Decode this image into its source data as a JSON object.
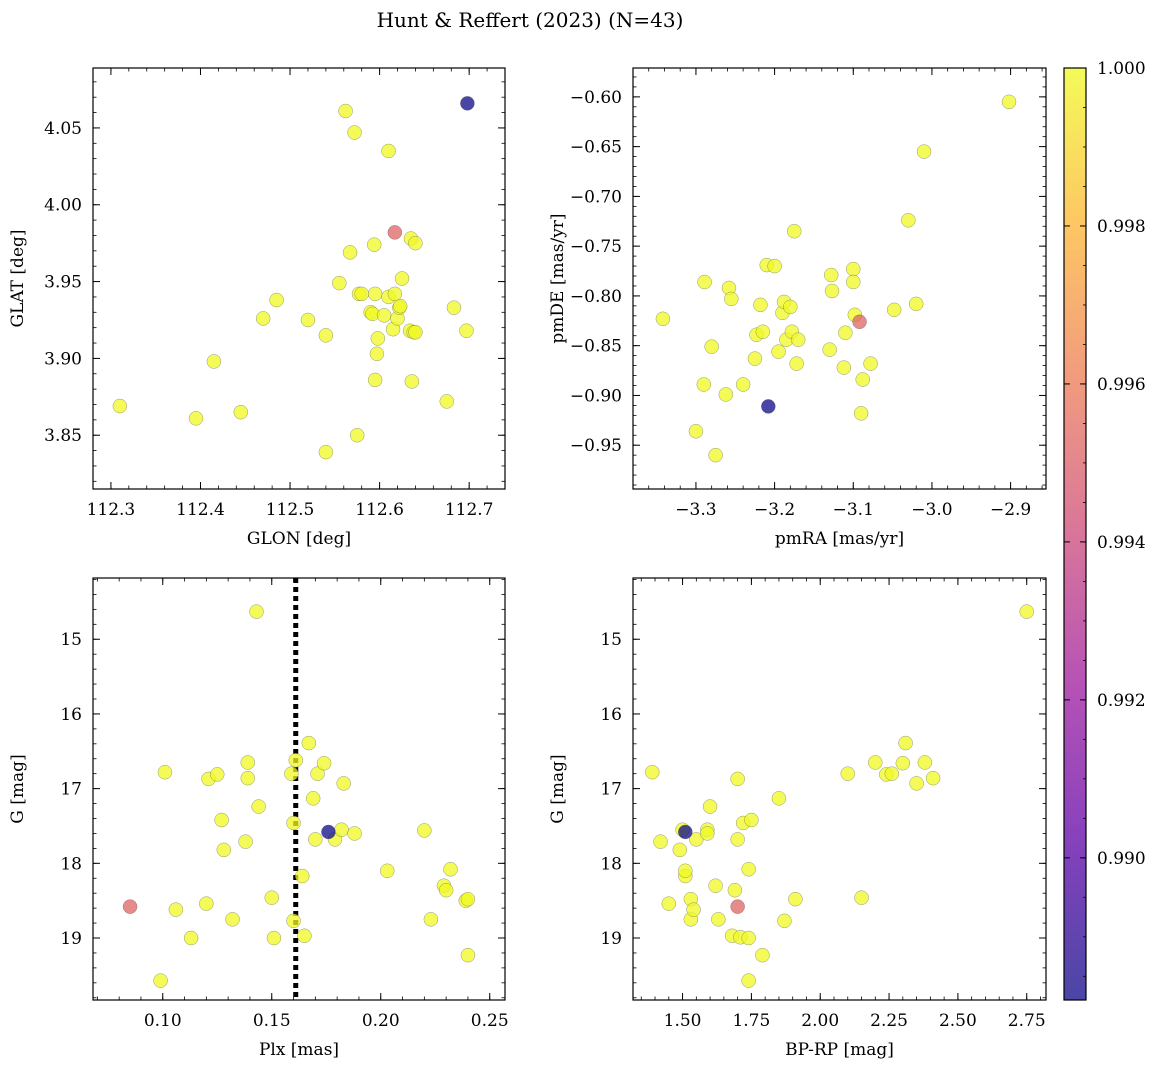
{
  "figure": {
    "title": "Hunt & Reffert (2023) (N=43)",
    "colorbar": {
      "min": 0.9882,
      "max": 1.0,
      "ticks": [
        0.99,
        0.992,
        0.994,
        0.996,
        0.998,
        1.0
      ],
      "tick_labels": [
        "0.990",
        "0.992",
        "0.994",
        "0.996",
        "0.998",
        "1.000"
      ],
      "colormap": "plasma",
      "colormap_stops": [
        "#0d0887",
        "#5c01a6",
        "#9c179e",
        "#cc4778",
        "#ed7953",
        "#fdb42f",
        "#f0f921"
      ],
      "alpha": 0.75
    }
  },
  "chart_data": [
    {
      "type": "scatter",
      "name": "glon-glat",
      "xlabel": "GLON [deg]",
      "ylabel": "GLAT [deg]",
      "xlim": [
        112.28,
        112.74
      ],
      "ylim": [
        3.815,
        4.089
      ],
      "xticks": [
        112.3,
        112.4,
        112.5,
        112.6,
        112.7
      ],
      "xtick_labels": [
        "112.3",
        "112.4",
        "112.5",
        "112.6",
        "112.7"
      ],
      "yticks": [
        3.85,
        3.9,
        3.95,
        4.0,
        4.05
      ],
      "ytick_labels": [
        "3.85",
        "3.90",
        "3.95",
        "4.00",
        "4.05"
      ],
      "invert_y": false,
      "x": [
        112.31,
        112.395,
        112.415,
        112.445,
        112.47,
        112.485,
        112.52,
        112.54,
        112.54,
        112.555,
        112.562,
        112.567,
        112.572,
        112.575,
        112.577,
        112.58,
        112.59,
        112.592,
        112.594,
        112.595,
        112.595,
        112.597,
        112.598,
        112.605,
        112.61,
        112.61,
        112.615,
        112.617,
        112.62,
        112.622,
        112.623,
        112.625,
        112.634,
        112.635,
        112.636,
        112.638,
        112.64,
        112.64,
        112.675,
        112.683,
        112.697,
        112.698,
        112.617
      ],
      "y": [
        3.869,
        3.861,
        3.898,
        3.865,
        3.926,
        3.938,
        3.925,
        3.915,
        3.839,
        3.949,
        4.061,
        3.969,
        4.047,
        3.85,
        3.942,
        3.942,
        3.93,
        3.929,
        3.974,
        3.942,
        3.886,
        3.903,
        3.913,
        3.928,
        3.94,
        4.035,
        3.919,
        3.942,
        3.926,
        3.933,
        3.934,
        3.952,
        3.918,
        3.978,
        3.885,
        3.917,
        3.975,
        3.917,
        3.872,
        3.933,
        3.918,
        4.066,
        3.982
      ],
      "c": [
        1,
        1,
        1,
        1,
        1,
        1,
        1,
        1,
        1,
        1,
        1,
        1,
        1,
        1,
        1,
        1,
        1,
        1,
        1,
        1,
        1,
        1,
        1,
        1,
        1,
        1,
        1,
        1,
        1,
        1,
        1,
        1,
        1,
        1,
        1,
        1,
        1,
        1,
        1,
        1,
        1,
        0.9882,
        0.9952
      ],
      "vline": null
    },
    {
      "type": "scatter",
      "name": "pmra-pmde",
      "xlabel": "pmRA [mas/yr]",
      "ylabel": "pmDE [mas/yr]",
      "xlim": [
        -3.38,
        -2.855
      ],
      "ylim": [
        -0.994,
        -0.571
      ],
      "xticks": [
        -3.3,
        -3.2,
        -3.1,
        -3.0,
        -2.9
      ],
      "xtick_labels": [
        "−3.3",
        "−3.2",
        "−3.1",
        "−3.0",
        "−2.9"
      ],
      "yticks": [
        -0.95,
        -0.9,
        -0.85,
        -0.8,
        -0.75,
        -0.7,
        -0.65,
        -0.6
      ],
      "ytick_labels": [
        "−0.95",
        "−0.90",
        "−0.85",
        "−0.80",
        "−0.75",
        "−0.70",
        "−0.65",
        "−0.60"
      ],
      "invert_y": false,
      "x": [
        -3.342,
        -3.3,
        -3.29,
        -3.289,
        -3.28,
        -3.275,
        -3.262,
        -3.258,
        -3.255,
        -3.24,
        -3.225,
        -3.223,
        -3.218,
        -3.215,
        -3.21,
        -3.2,
        -3.195,
        -3.19,
        -3.188,
        -3.185,
        -3.18,
        -3.178,
        -3.175,
        -3.172,
        -3.17,
        -3.13,
        -3.128,
        -3.127,
        -3.112,
        -3.11,
        -3.1,
        -3.1,
        -3.098,
        -3.09,
        -3.088,
        -3.078,
        -3.048,
        -3.03,
        -3.02,
        -3.01,
        -2.902,
        -3.208,
        -3.092
      ],
      "y": [
        -0.823,
        -0.936,
        -0.889,
        -0.786,
        -0.851,
        -0.96,
        -0.899,
        -0.792,
        -0.803,
        -0.889,
        -0.863,
        -0.839,
        -0.809,
        -0.836,
        -0.769,
        -0.77,
        -0.856,
        -0.817,
        -0.806,
        -0.844,
        -0.811,
        -0.836,
        -0.735,
        -0.868,
        -0.844,
        -0.854,
        -0.779,
        -0.795,
        -0.872,
        -0.837,
        -0.773,
        -0.786,
        -0.819,
        -0.918,
        -0.884,
        -0.868,
        -0.814,
        -0.724,
        -0.808,
        -0.655,
        -0.605,
        -0.911,
        -0.826
      ],
      "c": [
        1,
        1,
        1,
        1,
        1,
        1,
        1,
        1,
        1,
        1,
        1,
        1,
        1,
        1,
        1,
        1,
        1,
        1,
        1,
        1,
        1,
        1,
        1,
        1,
        1,
        1,
        1,
        1,
        1,
        1,
        1,
        1,
        1,
        1,
        1,
        1,
        1,
        1,
        1,
        1,
        1,
        0.9882,
        0.9952
      ],
      "vline": null
    },
    {
      "type": "scatter",
      "name": "plx-g",
      "xlabel": "Plx [mas]",
      "ylabel": "G [mag]",
      "xlim": [
        0.068,
        0.257
      ],
      "ylim": [
        19.83,
        14.18
      ],
      "xticks": [
        0.1,
        0.15,
        0.2,
        0.25
      ],
      "xtick_labels": [
        "0.10",
        "0.15",
        "0.20",
        "0.25"
      ],
      "yticks": [
        15,
        16,
        17,
        18,
        19
      ],
      "ytick_labels": [
        "15",
        "16",
        "17",
        "18",
        "19"
      ],
      "invert_y": true,
      "x": [
        0.099,
        0.101,
        0.106,
        0.113,
        0.12,
        0.121,
        0.125,
        0.127,
        0.128,
        0.132,
        0.138,
        0.139,
        0.139,
        0.143,
        0.144,
        0.15,
        0.151,
        0.159,
        0.16,
        0.16,
        0.161,
        0.164,
        0.165,
        0.167,
        0.169,
        0.17,
        0.171,
        0.174,
        0.179,
        0.182,
        0.183,
        0.188,
        0.203,
        0.22,
        0.223,
        0.229,
        0.23,
        0.232,
        0.239,
        0.24,
        0.24,
        0.176,
        0.085
      ],
      "y": [
        19.57,
        16.78,
        18.62,
        19.0,
        18.54,
        16.87,
        16.81,
        17.42,
        17.82,
        18.75,
        17.71,
        16.65,
        16.86,
        14.63,
        17.24,
        18.46,
        19.0,
        16.8,
        17.46,
        18.77,
        16.62,
        18.17,
        18.97,
        16.39,
        17.13,
        17.68,
        16.8,
        16.66,
        17.68,
        17.55,
        16.93,
        17.6,
        18.1,
        17.56,
        18.75,
        18.3,
        18.36,
        18.08,
        18.5,
        18.48,
        19.23,
        17.58,
        18.58
      ],
      "c": [
        1,
        1,
        1,
        1,
        1,
        1,
        1,
        1,
        1,
        1,
        1,
        1,
        1,
        1,
        1,
        1,
        1,
        1,
        1,
        1,
        1,
        1,
        1,
        1,
        1,
        1,
        1,
        1,
        1,
        1,
        1,
        1,
        1,
        1,
        1,
        1,
        1,
        1,
        1,
        1,
        1,
        0.9882,
        0.9952
      ],
      "vline": 0.161
    },
    {
      "type": "scatter",
      "name": "bprp-g",
      "xlabel": "BP-RP [mag]",
      "ylabel": "G [mag]",
      "xlim": [
        1.32,
        2.82
      ],
      "ylim": [
        19.83,
        14.18
      ],
      "xticks": [
        1.5,
        1.75,
        2.0,
        2.25,
        2.5,
        2.75
      ],
      "xtick_labels": [
        "1.50",
        "1.75",
        "2.00",
        "2.25",
        "2.50",
        "2.75"
      ],
      "yticks": [
        15,
        16,
        17,
        18,
        19
      ],
      "ytick_labels": [
        "15",
        "16",
        "17",
        "18",
        "19"
      ],
      "invert_y": true,
      "x": [
        1.39,
        1.42,
        1.45,
        1.49,
        1.5,
        1.51,
        1.51,
        1.53,
        1.53,
        1.54,
        1.55,
        1.59,
        1.59,
        1.6,
        1.62,
        1.63,
        1.68,
        1.69,
        1.7,
        1.7,
        1.71,
        1.72,
        1.74,
        1.74,
        1.75,
        1.79,
        1.85,
        1.87,
        1.91,
        2.1,
        2.15,
        2.2,
        2.24,
        2.26,
        2.3,
        2.31,
        2.35,
        2.38,
        2.41,
        2.75,
        1.74,
        1.51,
        1.7
      ],
      "y": [
        16.78,
        17.71,
        18.54,
        17.82,
        17.55,
        18.17,
        18.1,
        18.48,
        18.75,
        18.62,
        17.68,
        17.55,
        17.6,
        17.24,
        18.3,
        18.75,
        18.97,
        18.36,
        16.87,
        17.68,
        18.99,
        17.46,
        19.57,
        19.0,
        17.42,
        19.23,
        17.13,
        18.77,
        18.48,
        16.8,
        18.46,
        16.65,
        16.81,
        16.8,
        16.66,
        16.39,
        16.93,
        16.65,
        16.86,
        14.63,
        18.08,
        17.58,
        18.58
      ],
      "c": [
        1,
        1,
        1,
        1,
        1,
        1,
        1,
        1,
        1,
        1,
        1,
        1,
        1,
        1,
        1,
        1,
        1,
        1,
        1,
        1,
        1,
        1,
        1,
        1,
        1,
        1,
        1,
        1,
        1,
        1,
        1,
        1,
        1,
        1,
        1,
        1,
        1,
        1,
        1,
        1,
        1,
        0.9882,
        0.9952
      ],
      "vline": null
    }
  ]
}
